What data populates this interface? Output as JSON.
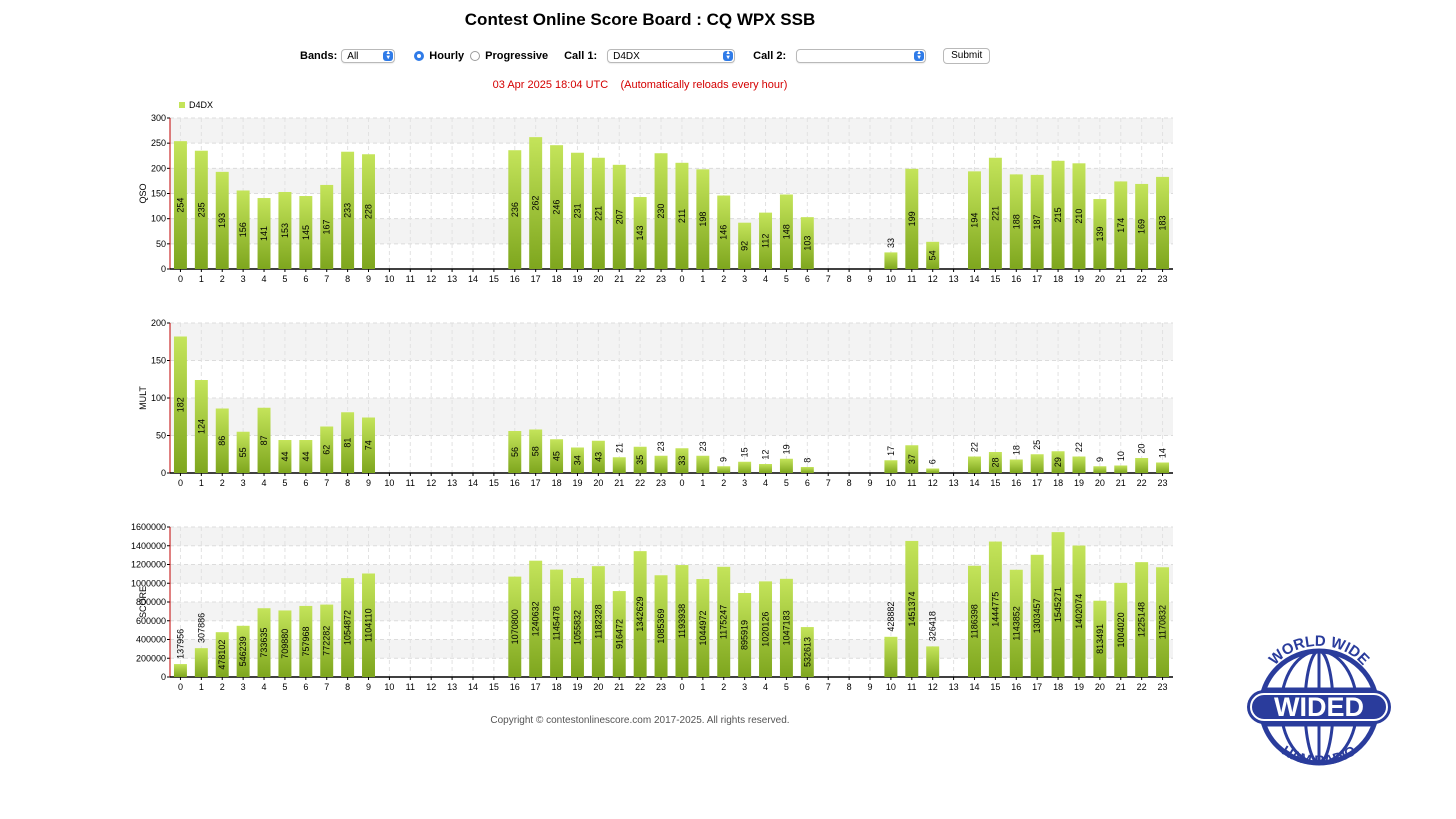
{
  "page": {
    "title": "Contest Online Score Board : CQ WPX SSB",
    "timestamp": "03 Apr 2025 18:04 UTC",
    "reload_note": "(Automatically reloads every hour)",
    "copyright": "Copyright © contestonlinescore.com 2017-2025. All rights reserved."
  },
  "controls": {
    "bands_label": "Bands:",
    "bands_value": "All",
    "hourly_label": "Hourly",
    "progressive_label": "Progressive",
    "mode_selected": "Hourly",
    "call1_label": "Call 1:",
    "call1_value": "D4DX",
    "call2_label": "Call 2:",
    "call2_value": "",
    "submit_label": "Submit"
  },
  "logo": {
    "top_text": "WORLD WIDE",
    "main_text": "WIDED",
    "bottom_text": "HAM RADIO",
    "color": "#2a3c9c"
  },
  "colors": {
    "bar_light": "#c4e45a",
    "bar_dark": "#7ea61e",
    "accent": "#2f7be8",
    "timestamp": "#d40000"
  },
  "chart_data": [
    {
      "type": "bar",
      "legend": "D4DX",
      "ylabel": "QSO",
      "ylim": [
        0,
        300
      ],
      "yticks": [
        "0",
        "50",
        "100",
        "150",
        "200",
        "250",
        "300"
      ],
      "categories": [
        "0",
        "1",
        "2",
        "3",
        "4",
        "5",
        "6",
        "7",
        "8",
        "9",
        "10",
        "11",
        "12",
        "13",
        "14",
        "15",
        "16",
        "17",
        "18",
        "19",
        "20",
        "21",
        "22",
        "23",
        "0",
        "1",
        "2",
        "3",
        "4",
        "5",
        "6",
        "7",
        "8",
        "9",
        "10",
        "11",
        "12",
        "13",
        "14",
        "15",
        "16",
        "17",
        "18",
        "19",
        "20",
        "21",
        "22",
        "23"
      ],
      "values": [
        254,
        235,
        193,
        156,
        141,
        153,
        145,
        167,
        233,
        228,
        0,
        0,
        0,
        0,
        0,
        0,
        236,
        262,
        246,
        231,
        221,
        207,
        143,
        230,
        211,
        198,
        146,
        92,
        112,
        148,
        103,
        0,
        0,
        0,
        33,
        199,
        54,
        0,
        194,
        221,
        188,
        187,
        215,
        210,
        139,
        174,
        169,
        183
      ],
      "labels": [
        "254",
        "235",
        "193",
        "156",
        "141",
        "153",
        "145",
        "167",
        "233",
        "228",
        "",
        "",
        "",
        "",
        "",
        "",
        "236",
        "262",
        "246",
        "231",
        "221",
        "207",
        "143",
        "230",
        "211",
        "198",
        "146",
        "92",
        "112",
        "148",
        "103",
        "",
        "",
        "",
        "33",
        "199",
        "54",
        "",
        "194",
        "221",
        "188",
        "187",
        "215",
        "210",
        "139",
        "174",
        "169",
        "183"
      ]
    },
    {
      "type": "bar",
      "ylabel": "MULT",
      "ylim": [
        0,
        200
      ],
      "yticks": [
        "0",
        "50",
        "100",
        "150",
        "200"
      ],
      "categories": [
        "0",
        "1",
        "2",
        "3",
        "4",
        "5",
        "6",
        "7",
        "8",
        "9",
        "10",
        "11",
        "12",
        "13",
        "14",
        "15",
        "16",
        "17",
        "18",
        "19",
        "20",
        "21",
        "22",
        "23",
        "0",
        "1",
        "2",
        "3",
        "4",
        "5",
        "6",
        "7",
        "8",
        "9",
        "10",
        "11",
        "12",
        "13",
        "14",
        "15",
        "16",
        "17",
        "18",
        "19",
        "20",
        "21",
        "22",
        "23"
      ],
      "values": [
        182,
        124,
        86,
        55,
        87,
        44,
        44,
        62,
        81,
        74,
        0,
        0,
        0,
        0,
        0,
        0,
        56,
        58,
        45,
        34,
        43,
        21,
        35,
        23,
        33,
        23,
        9,
        15,
        12,
        19,
        8,
        0,
        0,
        0,
        17,
        37,
        6,
        0,
        22,
        28,
        18,
        25,
        29,
        22,
        9,
        10,
        20,
        14
      ],
      "labels": [
        "182",
        "124",
        "86",
        "55",
        "87",
        "44",
        "44",
        "62",
        "81",
        "74",
        "",
        "",
        "",
        "",
        "",
        "",
        "56",
        "58",
        "45",
        "34",
        "43",
        "21",
        "35",
        "23",
        "33",
        "23",
        "9",
        "15",
        "12",
        "19",
        "8",
        "",
        "",
        "",
        "17",
        "37",
        "6",
        "",
        "22",
        "28",
        "18",
        "25",
        "29",
        "22",
        "9",
        "10",
        "20",
        "14"
      ]
    },
    {
      "type": "bar",
      "ylabel": "SCORE",
      "ylim": [
        0,
        1600000
      ],
      "yticks": [
        "0",
        "200000",
        "400000",
        "600000",
        "800000",
        "1000000",
        "1200000",
        "1400000",
        "1600000"
      ],
      "categories": [
        "0",
        "1",
        "2",
        "3",
        "4",
        "5",
        "6",
        "7",
        "8",
        "9",
        "10",
        "11",
        "12",
        "13",
        "14",
        "15",
        "16",
        "17",
        "18",
        "19",
        "20",
        "21",
        "22",
        "23",
        "0",
        "1",
        "2",
        "3",
        "4",
        "5",
        "6",
        "7",
        "8",
        "9",
        "10",
        "11",
        "12",
        "13",
        "14",
        "15",
        "16",
        "17",
        "18",
        "19",
        "20",
        "21",
        "22",
        "23"
      ],
      "values": [
        137956,
        307886,
        478102,
        546239,
        733635,
        709880,
        757968,
        772282,
        1054872,
        1104110,
        0,
        0,
        0,
        0,
        0,
        0,
        1070800,
        1240632,
        1145478,
        1055832,
        1182328,
        916472,
        1342629,
        1085369,
        1193938,
        1044972,
        1175247,
        895919,
        1020126,
        1047183,
        532613,
        0,
        0,
        0,
        428882,
        1451374,
        326418,
        0,
        1186398,
        1444775,
        1143852,
        1303457,
        1545271,
        1402074,
        813491,
        1004020,
        1225148,
        1170832
      ],
      "labels": [
        "137956",
        "307886",
        "478102",
        "546239",
        "733635",
        "709880",
        "757968",
        "772282",
        "1054872",
        "1104110",
        "",
        "",
        "",
        "",
        "",
        "",
        "1070800",
        "1240632",
        "1145478",
        "1055832",
        "1182328",
        "916472",
        "1342629",
        "1085369",
        "1193938",
        "1044972",
        "1175247",
        "895919",
        "1020126",
        "1047183",
        "532613",
        "",
        "",
        "",
        "428882",
        "1451374",
        "326418",
        "",
        "1186398",
        "1444775",
        "1143852",
        "1303457",
        "1545271",
        "1402074",
        "813491",
        "1004020",
        "1225148",
        "1170832"
      ]
    }
  ]
}
